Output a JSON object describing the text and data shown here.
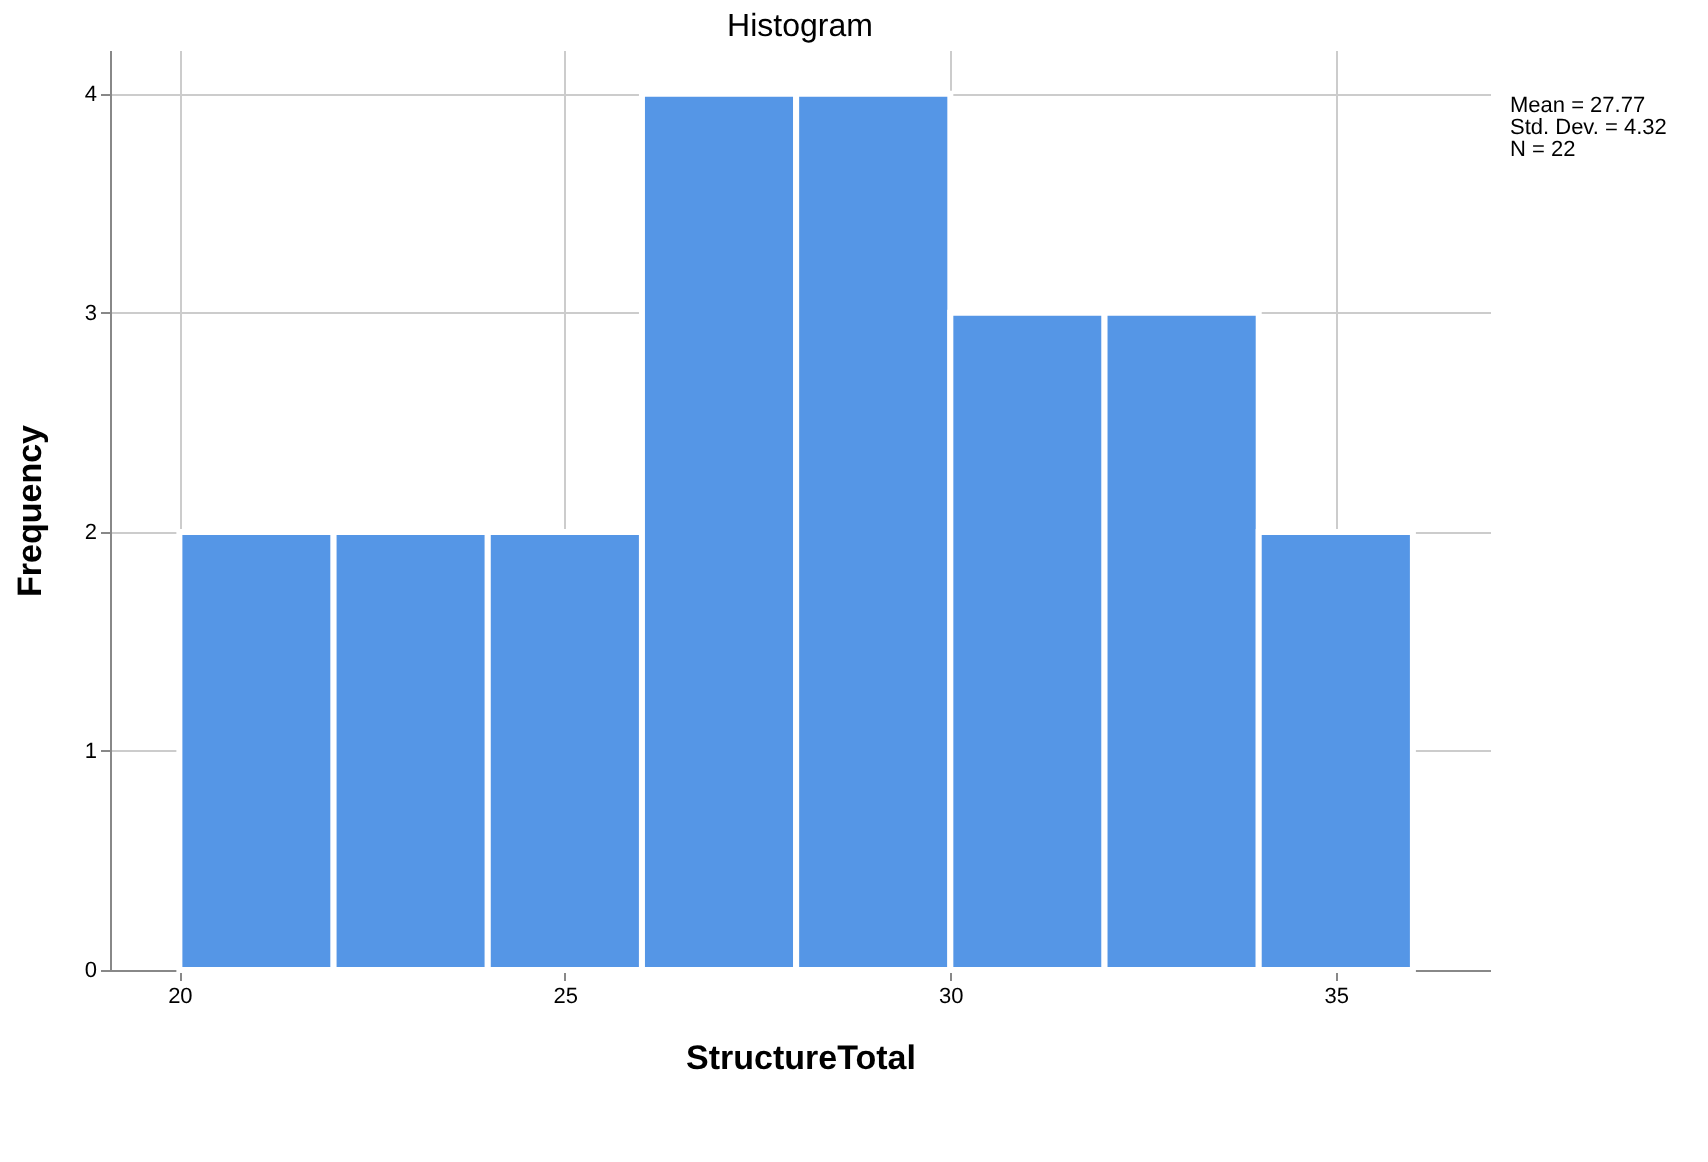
{
  "chart_data": {
    "type": "histogram",
    "title": "Histogram",
    "xlabel": "StructureTotal",
    "ylabel": "Frequency",
    "bins": [
      20,
      22,
      24,
      26,
      28,
      30,
      32,
      34,
      36
    ],
    "values": [
      2,
      2,
      2,
      4,
      4,
      3,
      3,
      2
    ],
    "color": "#5596e6",
    "xlim": [
      19.1,
      37
    ],
    "xticks": [
      20,
      25,
      30,
      35
    ],
    "ylim": [
      0,
      4.2
    ],
    "yticks": [
      0,
      1,
      2,
      3,
      4
    ],
    "grid": true,
    "annotations": [
      "Mean = 27.77",
      "Std. Dev. = 4.32",
      "N = 22"
    ]
  }
}
